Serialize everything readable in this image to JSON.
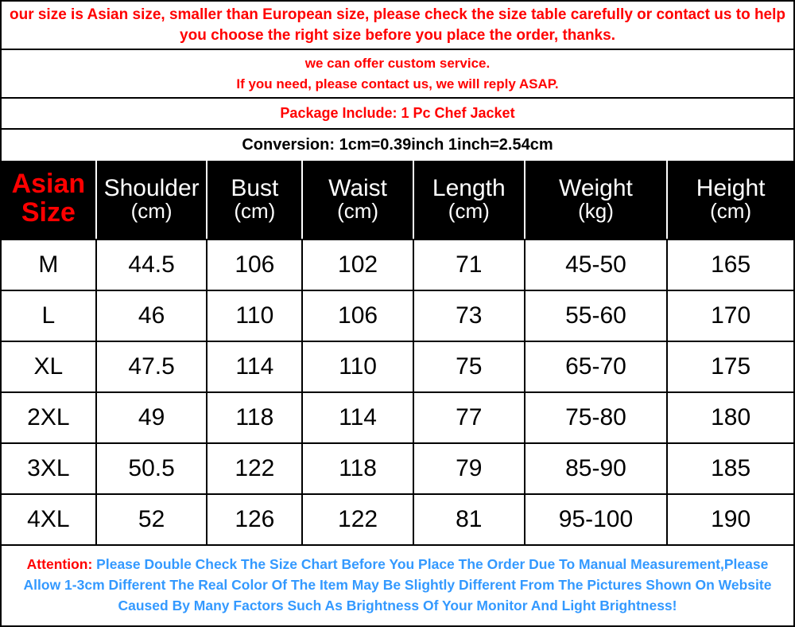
{
  "notices": {
    "n1": "our size is Asian size, smaller than European size, please check the size table carefully or contact us to help you choose the right size before you place the order, thanks.",
    "n2a": "we can offer custom service.",
    "n2b": "If you need, please contact us, we will reply ASAP.",
    "n3": "Package Include: 1 Pc Chef Jacket",
    "n4": "Conversion: 1cm=0.39inch  1inch=2.54cm"
  },
  "table": {
    "headers": {
      "asian_l1": "Asian",
      "asian_l2": "Size",
      "shoulder": "Shoulder",
      "bust": "Bust",
      "waist": "Waist",
      "length": "Length",
      "weight": "Weight",
      "height": "Height",
      "unit_cm": "(cm)",
      "unit_kg": "(kg)"
    },
    "rows": [
      {
        "size": "M",
        "shoulder": "44.5",
        "bust": "106",
        "waist": "102",
        "length": "71",
        "weight": "45-50",
        "height": "165"
      },
      {
        "size": "L",
        "shoulder": "46",
        "bust": "110",
        "waist": "106",
        "length": "73",
        "weight": "55-60",
        "height": "170"
      },
      {
        "size": "XL",
        "shoulder": "47.5",
        "bust": "114",
        "waist": "110",
        "length": "75",
        "weight": "65-70",
        "height": "175"
      },
      {
        "size": "2XL",
        "shoulder": "49",
        "bust": "118",
        "waist": "114",
        "length": "77",
        "weight": "75-80",
        "height": "180"
      },
      {
        "size": "3XL",
        "shoulder": "50.5",
        "bust": "122",
        "waist": "118",
        "length": "79",
        "weight": "85-90",
        "height": "185"
      },
      {
        "size": "4XL",
        "shoulder": "52",
        "bust": "126",
        "waist": "122",
        "length": "81",
        "weight": "95-100",
        "height": "190"
      }
    ]
  },
  "attention": {
    "label": "Attention:",
    "text": "Please Double Check The Size Chart Before You Place The Order Due To Manual Measurement,Please Allow 1-3cm Different The Real Color Of The Item May Be Slightly Different From The Pictures Shown On Website Caused By Many Factors Such As Brightness Of Your Monitor And Light Brightness!"
  },
  "colors": {
    "red": "#ff0000",
    "blue": "#3399ff",
    "black": "#000000",
    "white": "#ffffff"
  }
}
